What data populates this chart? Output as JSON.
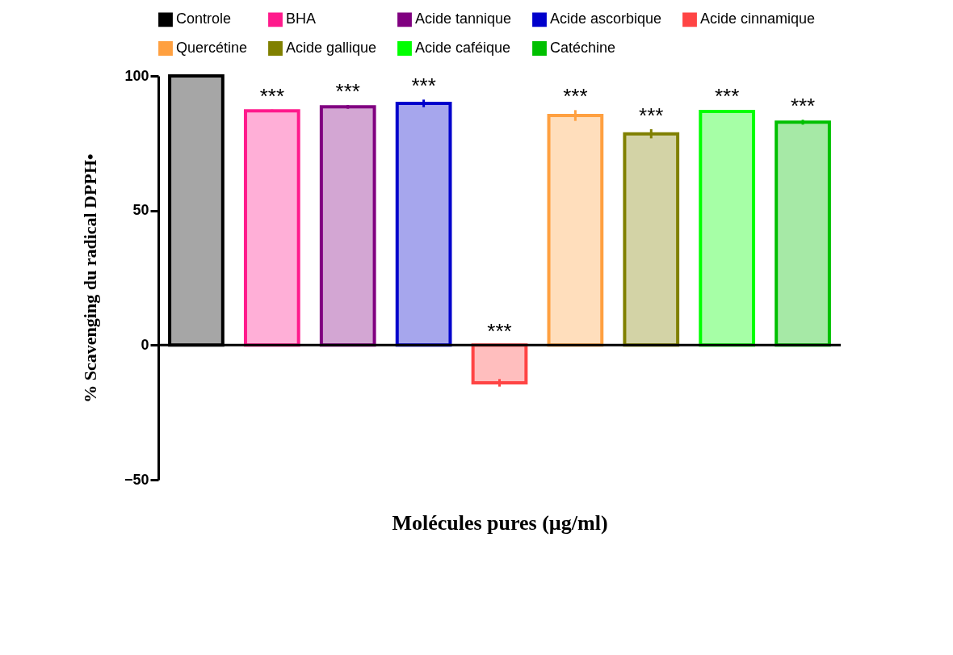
{
  "chart_data": {
    "type": "bar",
    "xlabel": "Molécules pures (µg/ml)",
    "ylabel": "% Scavenging du radical DPPH•",
    "categories": [
      null,
      null,
      null,
      null,
      null,
      null,
      null,
      null,
      null
    ],
    "series": [
      {
        "name": "Controle",
        "color": "#000000",
        "values": [
          100,
          null,
          null,
          null,
          null,
          null,
          null,
          null,
          null
        ],
        "errors": [
          0,
          null,
          null,
          null,
          null,
          null,
          null,
          null,
          null
        ],
        "value_labels": [
          null,
          null,
          null,
          null,
          null,
          null,
          null,
          null,
          null
        ]
      },
      {
        "name": "BHA",
        "color": "#ff1a8c",
        "values": [
          null,
          87,
          null,
          null,
          null,
          null,
          null,
          null,
          null
        ],
        "errors": [
          null,
          0.5,
          null,
          null,
          null,
          null,
          null,
          null,
          null
        ],
        "value_labels": [
          null,
          "***",
          null,
          null,
          null,
          null,
          null,
          null,
          null
        ]
      },
      {
        "name": "Acide tannique",
        "color": "#800080",
        "values": [
          null,
          null,
          88.5,
          null,
          null,
          null,
          null,
          null,
          null
        ],
        "errors": [
          null,
          null,
          0.7,
          null,
          null,
          null,
          null,
          null,
          null
        ],
        "value_labels": [
          null,
          null,
          "***",
          null,
          null,
          null,
          null,
          null,
          null
        ]
      },
      {
        "name": "Acide ascorbique",
        "color": "#0000cc",
        "values": [
          null,
          null,
          null,
          89.8,
          null,
          null,
          null,
          null,
          null
        ],
        "errors": [
          null,
          null,
          null,
          1.4,
          null,
          null,
          null,
          null,
          null
        ],
        "value_labels": [
          null,
          null,
          null,
          "***",
          null,
          null,
          null,
          null,
          null
        ]
      },
      {
        "name": "Acide cinnamique",
        "color": "#ff4444",
        "values": [
          null,
          null,
          null,
          null,
          -14,
          null,
          null,
          null,
          null
        ],
        "errors": [
          null,
          null,
          null,
          null,
          1.4,
          null,
          null,
          null,
          null
        ],
        "value_labels": [
          null,
          null,
          null,
          null,
          "***",
          null,
          null,
          null,
          null
        ]
      },
      {
        "name": "Quercétine",
        "color": "#ffa040",
        "values": [
          null,
          null,
          null,
          null,
          null,
          85.3,
          null,
          null,
          null
        ],
        "errors": [
          null,
          null,
          null,
          null,
          null,
          2,
          null,
          null,
          null
        ],
        "value_labels": [
          null,
          null,
          null,
          null,
          null,
          "***",
          null,
          null,
          null
        ]
      },
      {
        "name": "Acide gallique",
        "color": "#808000",
        "values": [
          null,
          null,
          null,
          null,
          null,
          null,
          78.5,
          null,
          null
        ],
        "errors": [
          null,
          null,
          null,
          null,
          null,
          null,
          1.7,
          null,
          null
        ],
        "value_labels": [
          null,
          null,
          null,
          null,
          null,
          null,
          "***",
          null,
          null
        ]
      },
      {
        "name": "Acide caféique",
        "color": "#00ff00",
        "values": [
          null,
          null,
          null,
          null,
          null,
          null,
          null,
          86.8,
          null
        ],
        "errors": [
          null,
          null,
          null,
          null,
          null,
          null,
          null,
          0.6,
          null
        ],
        "value_labels": [
          null,
          null,
          null,
          null,
          null,
          null,
          null,
          "***",
          null
        ]
      },
      {
        "name": "Catéchine",
        "color": "#00c000",
        "values": [
          null,
          null,
          null,
          null,
          null,
          null,
          null,
          null,
          82.8
        ],
        "errors": [
          null,
          null,
          null,
          null,
          null,
          null,
          null,
          null,
          0.9
        ],
        "value_labels": [
          null,
          null,
          null,
          null,
          null,
          null,
          null,
          null,
          "***"
        ]
      }
    ],
    "ylim": [
      -50,
      100
    ],
    "yticks": [
      -50,
      0,
      50,
      100
    ],
    "ref_lines": [
      {
        "axis": "y",
        "value": 0
      }
    ],
    "tick_labels": "y",
    "legend": "top",
    "grid": false
  }
}
